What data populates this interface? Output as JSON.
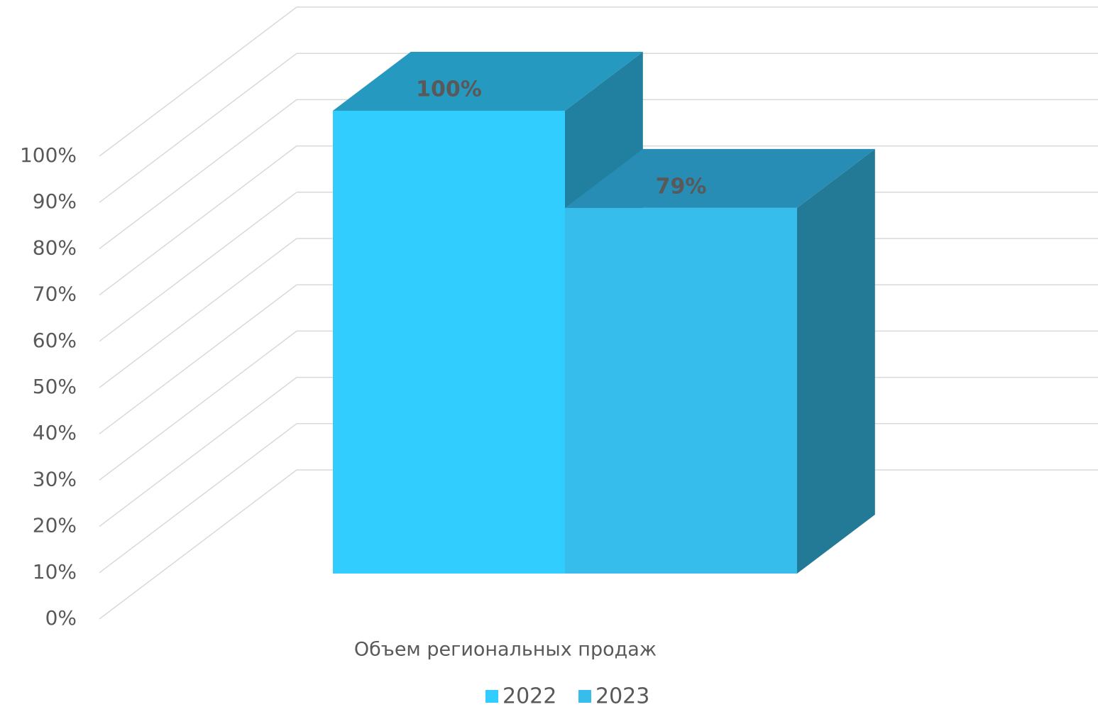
{
  "chart_data": {
    "type": "bar3d",
    "categories": [
      "Объем региональных продаж"
    ],
    "series": [
      {
        "name": "2022",
        "color": "#30cdfe",
        "top_color": "#2599c0",
        "side_color": "#2180a0",
        "values": [
          100
        ],
        "value_labels": [
          "100%"
        ]
      },
      {
        "name": "2023",
        "color": "#37bdec",
        "top_color": "#288db5",
        "side_color": "#227a96",
        "values": [
          79
        ],
        "value_labels": [
          "79%"
        ]
      }
    ],
    "ylim": [
      0,
      100
    ],
    "yticks": [
      {
        "value": 0,
        "label": "0%"
      },
      {
        "value": 10,
        "label": "10%"
      },
      {
        "value": 20,
        "label": "20%"
      },
      {
        "value": 30,
        "label": "30%"
      },
      {
        "value": 40,
        "label": "40%"
      },
      {
        "value": 50,
        "label": "50%"
      },
      {
        "value": 60,
        "label": "60%"
      },
      {
        "value": 70,
        "label": "70%"
      },
      {
        "value": 80,
        "label": "80%"
      },
      {
        "value": 90,
        "label": "90%"
      },
      {
        "value": 100,
        "label": "100%"
      }
    ],
    "grid": true,
    "legend": "bottom"
  }
}
